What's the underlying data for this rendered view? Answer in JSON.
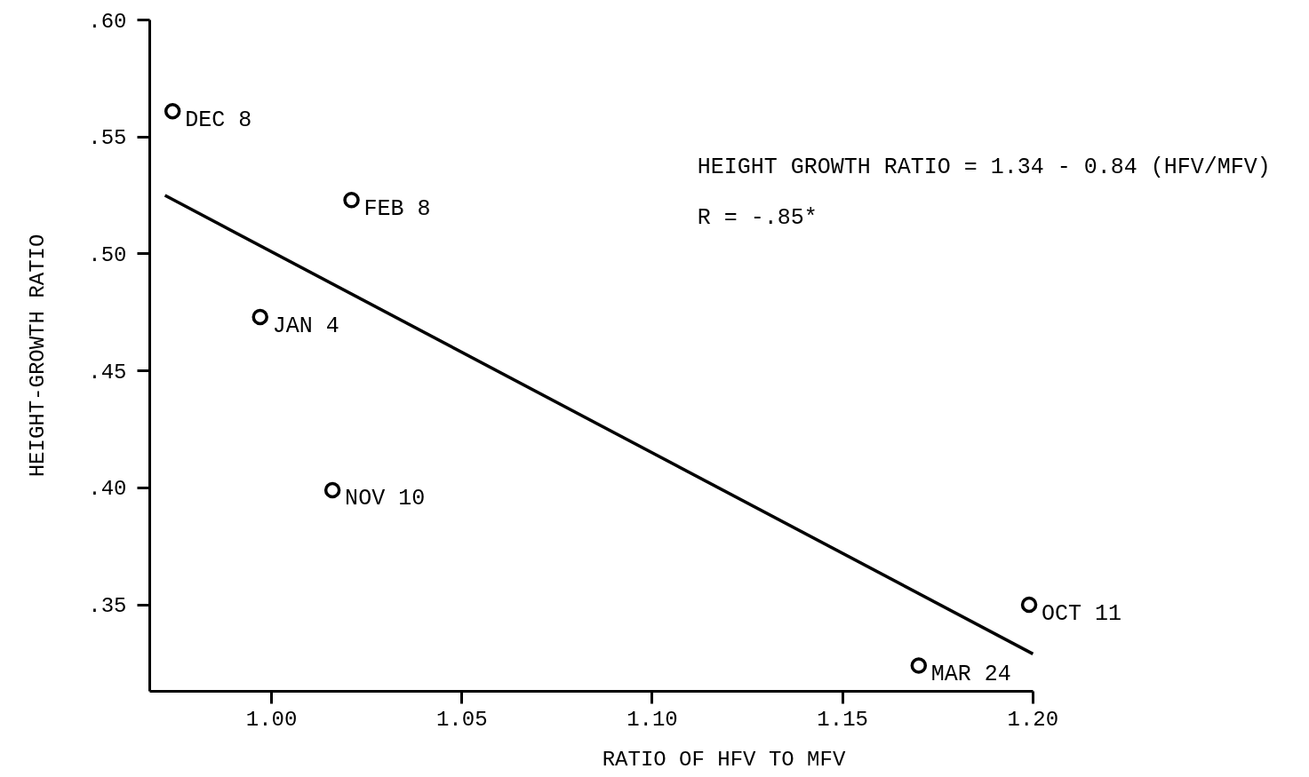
{
  "chart_data": {
    "type": "scatter",
    "xlabel": "RATIO OF HFV TO MFV",
    "ylabel": "HEIGHT-GROWTH RATIO",
    "xlim": [
      0.968,
      1.2
    ],
    "ylim": [
      0.313,
      0.6
    ],
    "xticks": [
      {
        "value": 1.0,
        "label": "1.00"
      },
      {
        "value": 1.05,
        "label": "1.05"
      },
      {
        "value": 1.1,
        "label": "1.10"
      },
      {
        "value": 1.15,
        "label": "1.15"
      },
      {
        "value": 1.2,
        "label": "1.20"
      }
    ],
    "yticks": [
      {
        "value": 0.35,
        "label": ".35"
      },
      {
        "value": 0.4,
        "label": ".40"
      },
      {
        "value": 0.45,
        "label": ".45"
      },
      {
        "value": 0.5,
        "label": ".50"
      },
      {
        "value": 0.55,
        "label": ".55"
      },
      {
        "value": 0.6,
        "label": ".60"
      }
    ],
    "grid": false,
    "marker": "circle",
    "series": [
      {
        "color": "#000000",
        "x": [
          0.974,
          1.021,
          0.997,
          1.016,
          1.199,
          1.17
        ],
        "values": [
          0.561,
          0.523,
          0.473,
          0.399,
          0.35,
          0.324
        ]
      },
      {
        "type": "line",
        "color": "#000000",
        "marker": "none",
        "x": [
          0.972,
          1.2
        ],
        "values": [
          0.525,
          0.329
        ]
      }
    ],
    "annotations": [
      {
        "text": "DEC 8",
        "x": 0.974,
        "y": 0.561
      },
      {
        "text": "FEB 8",
        "x": 1.021,
        "y": 0.523
      },
      {
        "text": "JAN 4",
        "x": 0.997,
        "y": 0.473
      },
      {
        "text": "NOV 10",
        "x": 1.016,
        "y": 0.399
      },
      {
        "text": "OCT 11",
        "x": 1.199,
        "y": 0.35
      },
      {
        "text": "MAR 24",
        "x": 1.17,
        "y": 0.324
      },
      "HEIGHT GROWTH RATIO = 1.34 - 0.84 (HFV/MFV)",
      "R = -.85*"
    ]
  }
}
